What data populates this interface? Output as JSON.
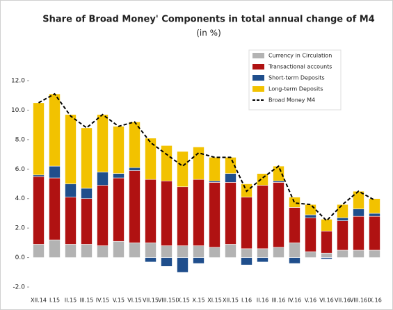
{
  "chart_data": {
    "type": "bar",
    "stacked": true,
    "title": "Share of Broad Money' Components in total annual change of M4",
    "subtitle": "(in %)",
    "categories": [
      "XII.14",
      "I.15",
      "II.15",
      "III.15",
      "IV.15",
      "V.15",
      "VI.15",
      "VII.15",
      "VIII.15",
      "IX.15",
      "X.15",
      "XI.15",
      "XII.15",
      "I.16",
      "II.16",
      "III.16",
      "IV.16",
      "V.16",
      "VI.16",
      "VII.16",
      "VIII.16",
      "IX.16"
    ],
    "series": [
      {
        "name": "Currency in Circulation",
        "color": "#b3b3b3",
        "values": [
          0.9,
          1.2,
          0.9,
          0.9,
          0.8,
          1.1,
          1.0,
          1.0,
          0.8,
          0.8,
          0.8,
          0.7,
          0.9,
          0.6,
          0.6,
          0.7,
          1.0,
          0.4,
          0.3,
          0.5,
          0.5,
          0.5
        ]
      },
      {
        "name": "Transactional accounts",
        "color": "#b01212",
        "values": [
          4.6,
          4.2,
          3.2,
          3.1,
          4.1,
          4.3,
          4.9,
          4.3,
          4.4,
          4.0,
          4.5,
          4.4,
          4.2,
          3.5,
          4.3,
          4.4,
          2.4,
          2.3,
          1.5,
          2.0,
          2.3,
          2.3
        ]
      },
      {
        "name": "Short-term Deposits",
        "color": "#1f4e8c",
        "values": [
          0.1,
          0.8,
          0.9,
          0.7,
          0.9,
          0.3,
          0.2,
          -0.3,
          -0.6,
          -1.0,
          -0.4,
          0.1,
          0.6,
          -0.5,
          -0.3,
          0.1,
          -0.4,
          0.2,
          -0.1,
          0.2,
          0.5,
          0.2
        ]
      },
      {
        "name": "Long-term Deposits",
        "color": "#f2c200",
        "values": [
          4.9,
          4.9,
          4.7,
          4.1,
          3.9,
          3.2,
          3.1,
          2.8,
          2.4,
          2.4,
          2.2,
          1.6,
          1.1,
          0.9,
          0.8,
          1.0,
          0.7,
          0.7,
          0.8,
          0.9,
          1.2,
          1.0
        ]
      },
      {
        "name": "Broad Money M4",
        "type": "line",
        "color": "#000000",
        "dashed": true,
        "values": [
          10.5,
          11.1,
          9.6,
          8.8,
          9.7,
          8.9,
          9.2,
          7.8,
          7.0,
          6.2,
          7.1,
          6.8,
          6.8,
          4.5,
          5.4,
          6.2,
          3.7,
          3.6,
          2.5,
          3.6,
          4.5,
          3.9
        ]
      }
    ],
    "ylim": [
      -2,
      12
    ],
    "yticks": [
      {
        "value": -2,
        "label": "-2.0"
      },
      {
        "value": 0,
        "label": "0.0"
      },
      {
        "value": 2,
        "label": "2.0"
      },
      {
        "value": 4,
        "label": "4.0"
      },
      {
        "value": 6,
        "label": "6.0"
      },
      {
        "value": 8,
        "label": "8.0"
      },
      {
        "value": 10,
        "label": "10.0"
      },
      {
        "value": 12,
        "label": "12.0"
      }
    ],
    "legend": "top-right"
  }
}
